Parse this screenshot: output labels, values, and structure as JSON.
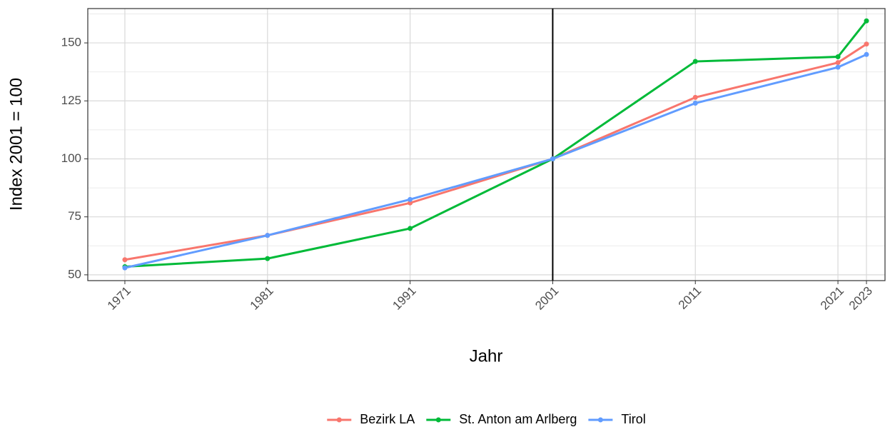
{
  "chart_data": {
    "type": "line",
    "x": [
      1971,
      1981,
      1991,
      2001,
      2011,
      2021,
      2023
    ],
    "series": [
      {
        "name": "Bezirk LA",
        "color": "#F8766D",
        "values": [
          56.5,
          67,
          81,
          100,
          126.5,
          141.5,
          149.5
        ]
      },
      {
        "name": "St. Anton am Arlberg",
        "color": "#00BA38",
        "values": [
          53.5,
          57,
          70,
          100,
          142,
          144,
          159.5
        ]
      },
      {
        "name": "Tirol",
        "color": "#619CFF",
        "values": [
          53,
          67,
          82.5,
          100,
          124,
          139.5,
          145
        ]
      }
    ],
    "xlabel": "Jahr",
    "ylabel": "Index 2001 = 100",
    "xlim": [
      1968.4,
      2024.3
    ],
    "ylim": [
      47.5,
      164.8
    ],
    "xticks": [
      1971,
      1981,
      1991,
      2001,
      2011,
      2021,
      2023
    ],
    "yticks": [
      50,
      75,
      100,
      125,
      150
    ],
    "yminor": [
      62.5,
      87.5,
      112.5,
      137.5,
      162.5
    ],
    "vline": 2001,
    "grid": true,
    "legend": "bottom"
  }
}
